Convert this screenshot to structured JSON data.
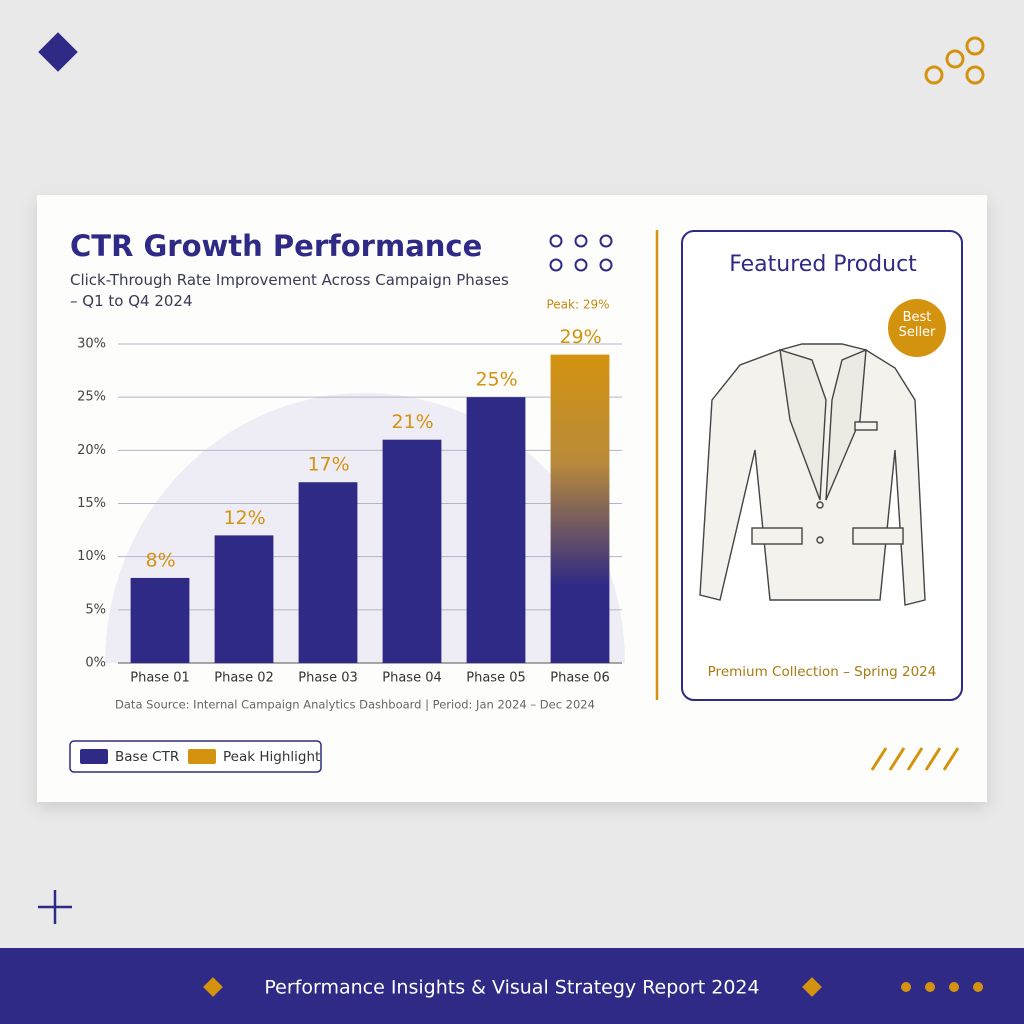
{
  "chart_data": {
    "type": "bar",
    "title": "CTR Growth Performance",
    "subtitle": "Click-Through Rate Improvement Across Campaign Phases – Q1 to Q4 2024",
    "annotation": "Peak: 29%",
    "source": "Data Source: Internal Campaign Analytics Dashboard | Period: Jan 2024 – Dec 2024",
    "categories": [
      "Phase 01",
      "Phase 02",
      "Phase 03",
      "Phase 04",
      "Phase 05",
      "Phase 06"
    ],
    "series": [
      {
        "name": "Base CTR",
        "color": "#2e2a85",
        "values": [
          8,
          12,
          17,
          21,
          25,
          null
        ],
        "value_labels": [
          "8%",
          "12%",
          "17%",
          "21%",
          "25%",
          null
        ]
      },
      {
        "name": "Peak Highlight",
        "color": "#d4930f",
        "values": [
          null,
          null,
          null,
          null,
          null,
          29
        ],
        "value_labels": [
          null,
          null,
          null,
          null,
          null,
          "29%"
        ]
      }
    ],
    "ylim": [
      0,
      30
    ],
    "yticks": [
      {
        "value": 0,
        "label": "0%"
      },
      {
        "value": 5,
        "label": "5%"
      },
      {
        "value": 10,
        "label": "10%"
      },
      {
        "value": 15,
        "label": "15%"
      },
      {
        "value": 20,
        "label": "20%"
      },
      {
        "value": 25,
        "label": "25%"
      },
      {
        "value": 30,
        "label": "30%"
      }
    ],
    "grid": true,
    "legend": "bottom-left"
  },
  "product": {
    "heading": "Featured Product",
    "badge": "Best Seller",
    "caption": "Premium Collection – Spring 2024"
  },
  "footer": {
    "title": "Performance Insights & Visual Strategy Report 2024"
  }
}
